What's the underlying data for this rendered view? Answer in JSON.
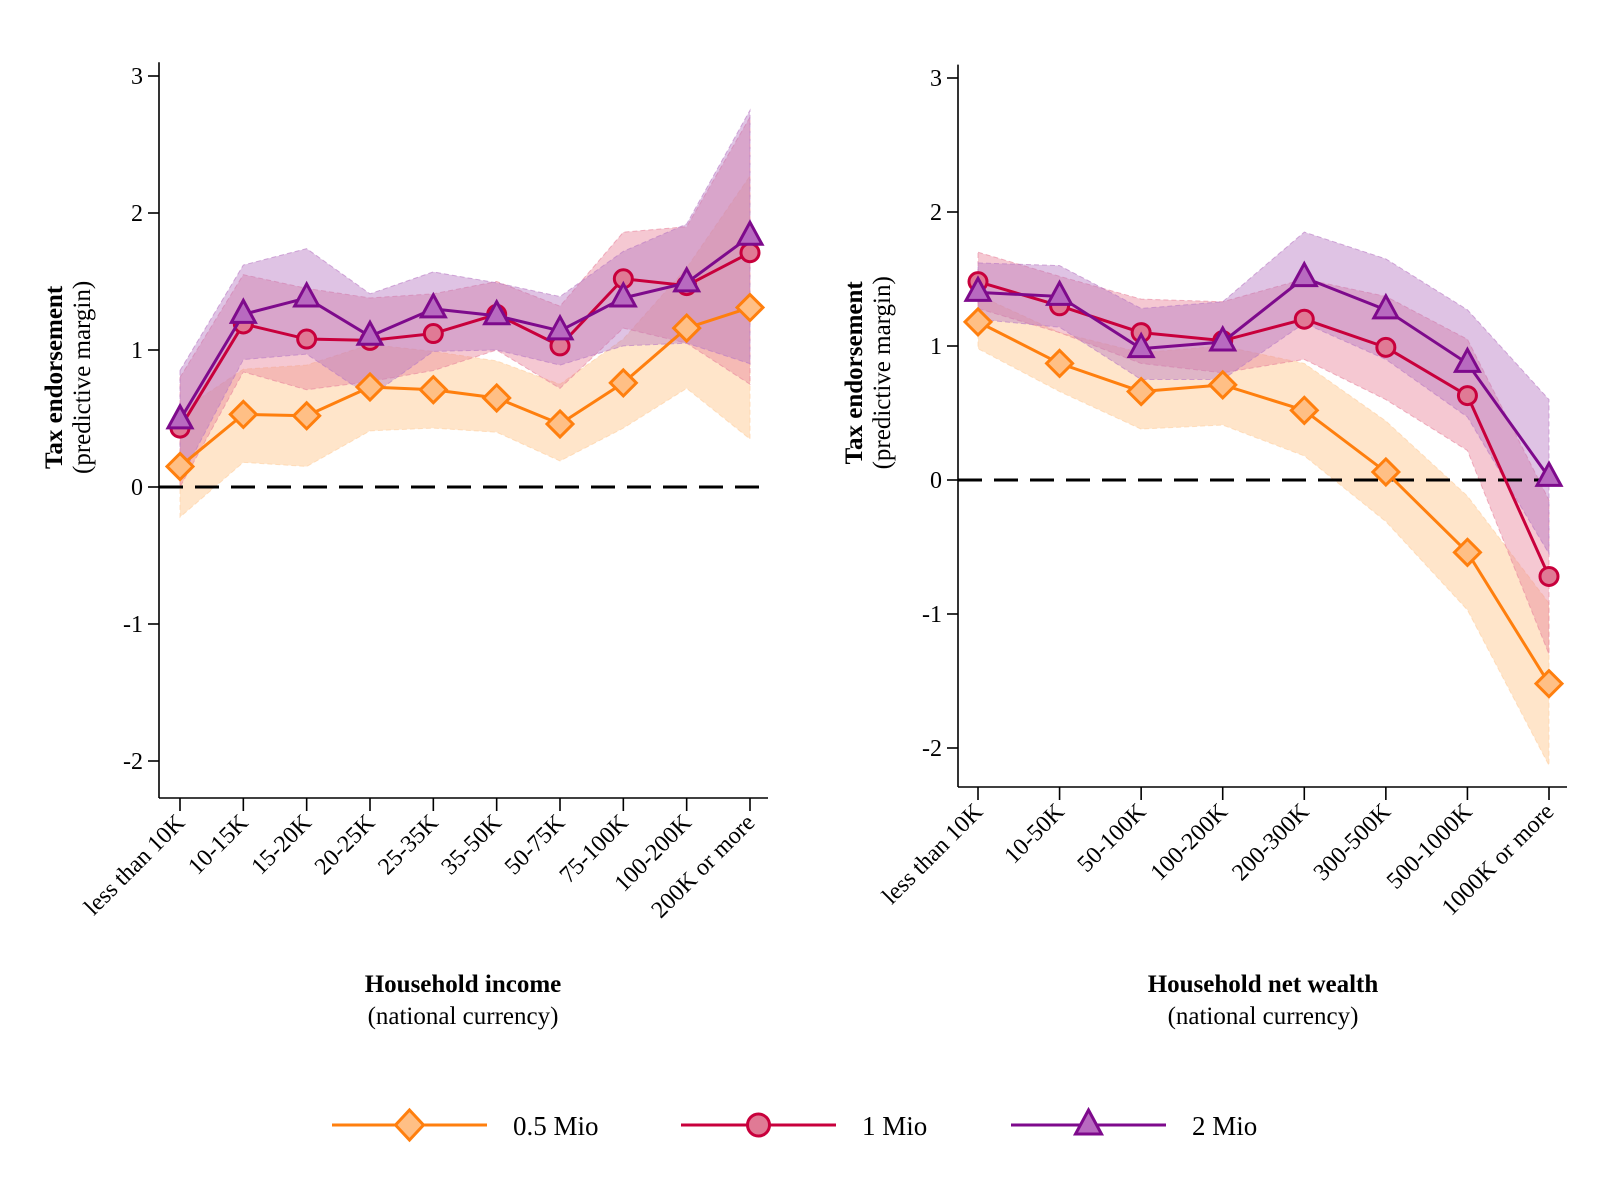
{
  "legend": [
    {
      "label": "0.5 Mio",
      "marker": "diamond",
      "line_color": "#ff7f0e",
      "fill_color": "#ffbf85",
      "band_color": "#ffcf9f"
    },
    {
      "label": "1 Mio",
      "marker": "circle",
      "line_color": "#c8003c",
      "fill_color": "#e07a95",
      "band_color": "#e8849c"
    },
    {
      "label": "2 Mio",
      "marker": "triangle",
      "line_color": "#7e0a8c",
      "fill_color": "#b86ac0",
      "band_color": "#b97ac4"
    }
  ],
  "chart_data": [
    {
      "type": "line",
      "title": "",
      "xlabel": "Household income",
      "xlabel_sub": "(national currency)",
      "ylabel": "Tax endorsement",
      "ylabel_sub": "(predictive margin)",
      "ylim": [
        -2.3,
        3.1
      ],
      "yticks": [
        -2,
        -1,
        0,
        1,
        2,
        3
      ],
      "reference_line": 0,
      "categories": [
        "less than 10K",
        "10-15K",
        "15-20K",
        "20-25K",
        "25-35K",
        "35-50K",
        "50-75K",
        "75-100K",
        "100-200K",
        "200K or more"
      ],
      "series": [
        {
          "name": "0.5 Mio",
          "values": [
            0.15,
            0.53,
            0.52,
            0.73,
            0.71,
            0.65,
            0.46,
            0.76,
            1.16,
            1.31
          ],
          "ci_low": [
            -0.22,
            0.18,
            0.15,
            0.41,
            0.43,
            0.4,
            0.19,
            0.43,
            0.72,
            0.35
          ],
          "ci_high": [
            0.55,
            0.86,
            0.89,
            1.04,
            0.99,
            0.92,
            0.75,
            1.08,
            1.6,
            2.27
          ]
        },
        {
          "name": "1 Mio",
          "values": [
            0.43,
            1.19,
            1.08,
            1.07,
            1.12,
            1.26,
            1.03,
            1.52,
            1.47,
            1.71
          ],
          "ci_low": [
            0.0,
            0.84,
            0.71,
            0.77,
            0.85,
            1.0,
            0.72,
            1.16,
            1.05,
            0.75
          ],
          "ci_high": [
            0.8,
            1.55,
            1.45,
            1.38,
            1.41,
            1.5,
            1.32,
            1.86,
            1.9,
            2.7
          ]
        },
        {
          "name": "2 Mio",
          "values": [
            0.49,
            1.26,
            1.38,
            1.1,
            1.3,
            1.25,
            1.14,
            1.38,
            1.49,
            1.83
          ],
          "ci_low": [
            0.05,
            0.93,
            0.97,
            0.66,
            0.99,
            1.0,
            0.89,
            1.03,
            1.05,
            0.9
          ],
          "ci_high": [
            0.85,
            1.62,
            1.74,
            1.41,
            1.57,
            1.49,
            1.39,
            1.72,
            1.92,
            2.75
          ]
        }
      ]
    },
    {
      "type": "line",
      "title": "",
      "xlabel": "Household net wealth",
      "xlabel_sub": "(national currency)",
      "ylabel": "Tax endorsement",
      "ylabel_sub": "(predictive margin)",
      "ylim": [
        -2.3,
        3.1
      ],
      "yticks": [
        -2,
        -1,
        0,
        1,
        2,
        3
      ],
      "reference_line": 0,
      "categories": [
        "less than 10K",
        "10-50K",
        "50-100K",
        "100-200K",
        "200-300K",
        "300-500K",
        "500-1000K",
        "1000K or more"
      ],
      "series": [
        {
          "name": "0.5 Mio",
          "values": [
            1.18,
            0.87,
            0.66,
            0.71,
            0.52,
            0.06,
            -0.54,
            -1.52
          ],
          "ci_low": [
            0.98,
            0.66,
            0.38,
            0.41,
            0.18,
            -0.31,
            -0.97,
            -2.13
          ],
          "ci_high": [
            1.38,
            1.1,
            0.95,
            1.0,
            0.87,
            0.44,
            -0.12,
            -0.92
          ]
        },
        {
          "name": "1 Mio",
          "values": [
            1.48,
            1.3,
            1.1,
            1.04,
            1.2,
            0.99,
            0.63,
            -0.72
          ],
          "ci_low": [
            1.28,
            1.1,
            0.87,
            0.8,
            0.9,
            0.6,
            0.22,
            -1.3
          ],
          "ci_high": [
            1.7,
            1.52,
            1.35,
            1.33,
            1.5,
            1.37,
            1.05,
            -0.15
          ]
        },
        {
          "name": "2 Mio",
          "values": [
            1.4,
            1.37,
            0.98,
            1.03,
            1.51,
            1.27,
            0.87,
            0.02
          ],
          "ci_low": [
            1.2,
            1.14,
            0.75,
            0.75,
            1.17,
            0.9,
            0.47,
            -0.55
          ],
          "ci_high": [
            1.62,
            1.6,
            1.28,
            1.33,
            1.85,
            1.65,
            1.27,
            0.6
          ]
        }
      ]
    }
  ]
}
